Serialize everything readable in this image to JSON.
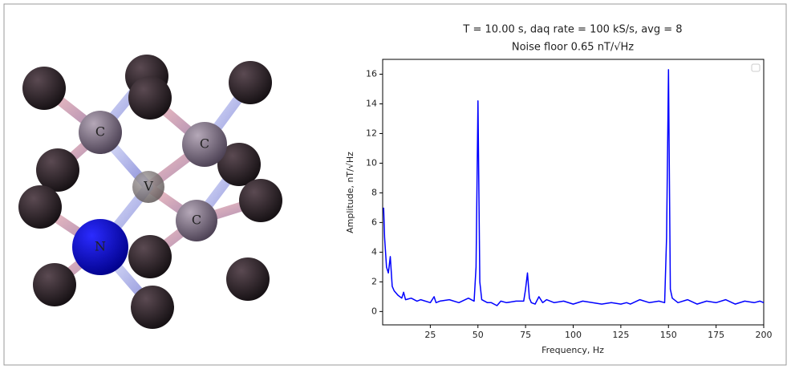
{
  "chart_data": {
    "type": "line",
    "title": "T = 10.00 s, daq rate = 100 kS/s, avg = 8",
    "subtitle": "Noise floor 0.65 nT/√Hz",
    "x_label": "Frequency, Hz",
    "y_label": "Amplitude, nT/√Hz",
    "color": "#0000ff",
    "x": [
      0.5,
      1,
      2,
      3,
      4,
      5,
      6,
      8,
      10,
      11,
      12,
      15,
      18,
      20,
      25,
      27,
      28,
      30,
      35,
      40,
      45,
      48,
      49,
      50,
      51,
      52,
      55,
      57,
      60,
      62,
      65,
      70,
      74,
      75,
      76,
      77,
      78,
      80,
      82,
      84,
      86,
      90,
      95,
      100,
      105,
      110,
      115,
      120,
      125,
      128,
      130,
      135,
      140,
      145,
      148,
      149,
      150,
      151,
      152,
      155,
      160,
      165,
      170,
      175,
      180,
      185,
      190,
      195,
      198,
      200
    ],
    "values": [
      7,
      5,
      3,
      2.6,
      3.7,
      1.7,
      1.4,
      1.1,
      0.9,
      1.3,
      0.8,
      0.9,
      0.7,
      0.8,
      0.6,
      1.0,
      0.6,
      0.7,
      0.8,
      0.6,
      0.9,
      0.7,
      3,
      14.2,
      2,
      0.8,
      0.6,
      0.6,
      0.4,
      0.7,
      0.6,
      0.7,
      0.7,
      1.5,
      2.6,
      0.9,
      0.6,
      0.5,
      1.0,
      0.6,
      0.8,
      0.6,
      0.7,
      0.5,
      0.7,
      0.6,
      0.5,
      0.6,
      0.5,
      0.6,
      0.5,
      0.8,
      0.6,
      0.7,
      0.6,
      5,
      16.3,
      1.5,
      0.9,
      0.6,
      0.8,
      0.5,
      0.7,
      0.6,
      0.8,
      0.5,
      0.7,
      0.6,
      0.7,
      0.6
    ],
    "xlim": [
      0,
      200
    ],
    "xticks": [
      25,
      50,
      75,
      100,
      125,
      150,
      175,
      200
    ],
    "ylim": [
      -0.9,
      17.0
    ],
    "yticks": [
      0,
      2,
      4,
      6,
      8,
      10,
      12,
      14,
      16
    ]
  },
  "molecule": {
    "atoms": [
      "C",
      "C",
      "V",
      "C",
      "N"
    ]
  }
}
